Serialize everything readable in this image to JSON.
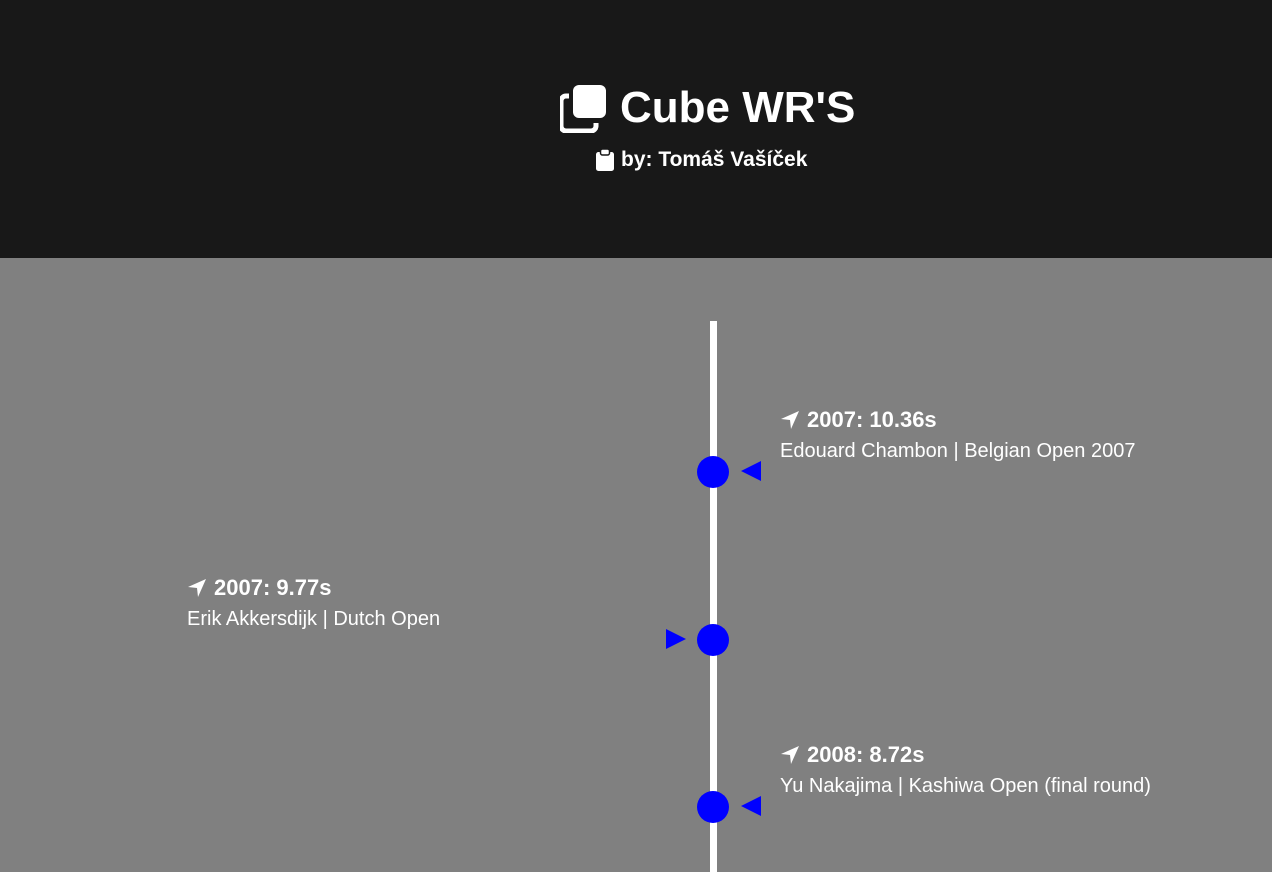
{
  "header": {
    "title": "Cube WR'S",
    "title_icon": "clone-icon",
    "byline": "by: Tomáš Vašíček",
    "byline_icon": "clipboard-icon",
    "background_color": "#181818"
  },
  "timeline": {
    "background_color": "#808080",
    "line_color": "#ffffff",
    "marker_color": "#0000ff",
    "entry_icon": "location-arrow-icon",
    "entries": [
      {
        "side": "right",
        "title": "2007: 10.36s",
        "description": "Edouard Chambon | Belgian Open 2007"
      },
      {
        "side": "left",
        "title": "2007: 9.77s",
        "description": "Erik Akkersdijk | Dutch Open"
      },
      {
        "side": "right",
        "title": "2008: 8.72s",
        "description": "Yu Nakajima | Kashiwa Open (final round)"
      }
    ]
  }
}
